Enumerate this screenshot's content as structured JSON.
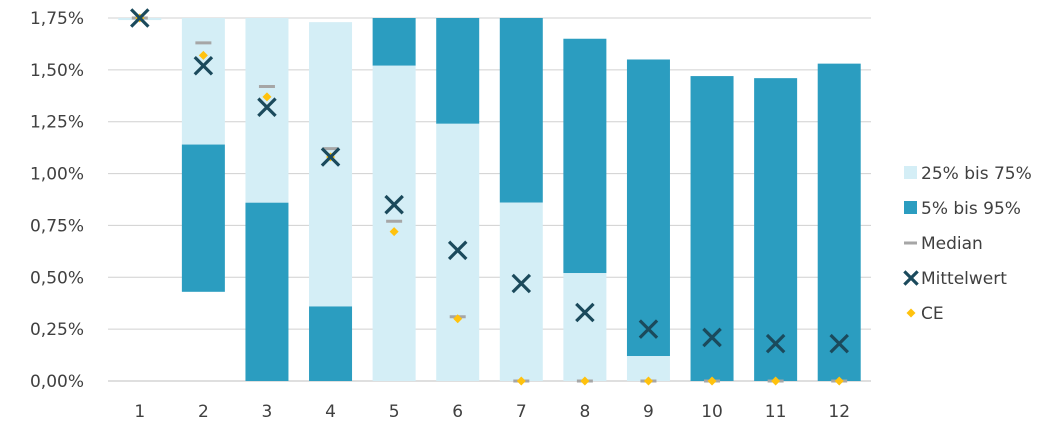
{
  "chart_data": {
    "type": "bar",
    "title": "",
    "xlabel": "",
    "ylabel": "",
    "ylim": [
      0,
      1.75
    ],
    "categories": [
      "1",
      "2",
      "3",
      "4",
      "5",
      "6",
      "7",
      "8",
      "9",
      "10",
      "11",
      "12"
    ],
    "y_ticks": [
      0,
      0.25,
      0.5,
      0.75,
      1.0,
      1.25,
      1.5,
      1.75
    ],
    "y_tick_labels": [
      "0,00%",
      "0,25%",
      "0,50%",
      "0,75%",
      "1,00%",
      "1,25%",
      "1,50%",
      "1,75%"
    ],
    "grid": "horizontal",
    "legend_position": "right",
    "series": [
      {
        "name": "25% bis 75%",
        "color": "#d4eef6",
        "kind": "range-bar",
        "values": [
          [
            1.74,
            1.75
          ],
          [
            1.14,
            1.75
          ],
          [
            0.86,
            1.75
          ],
          [
            0.36,
            1.73
          ],
          [
            0,
            1.52
          ],
          [
            0,
            1.24
          ],
          [
            0,
            0.86
          ],
          [
            0,
            0.52
          ],
          [
            0,
            0.12
          ],
          [
            0,
            0
          ],
          [
            0,
            0
          ],
          [
            0,
            0
          ]
        ]
      },
      {
        "name": "5% bis 95%",
        "color": "#2b9dc0",
        "kind": "range-bar",
        "values": [
          null,
          [
            0.43,
            1.14
          ],
          [
            0,
            0.86
          ],
          [
            0,
            0.36
          ],
          [
            1.52,
            1.75
          ],
          [
            1.24,
            1.75
          ],
          [
            0.86,
            1.75
          ],
          [
            0.52,
            1.65
          ],
          [
            0.12,
            1.55
          ],
          [
            0,
            1.47
          ],
          [
            0,
            1.46
          ],
          [
            0,
            1.53
          ]
        ]
      },
      {
        "name": "Median",
        "color": "#a6a6a6",
        "kind": "dash",
        "values": [
          1.75,
          1.63,
          1.42,
          1.12,
          0.77,
          0.31,
          0,
          0,
          0,
          0,
          0,
          0
        ]
      },
      {
        "name": "Mittelwert",
        "color": "#1b4a5c",
        "kind": "x-marker",
        "values": [
          1.75,
          1.52,
          1.32,
          1.08,
          0.85,
          0.63,
          0.47,
          0.33,
          0.25,
          0.21,
          0.18,
          0.18
        ]
      },
      {
        "name": "CE",
        "color": "#ffc20e",
        "kind": "diamond",
        "values": [
          1.75,
          1.57,
          1.37,
          1.08,
          0.72,
          0.3,
          0,
          0,
          0,
          0,
          0,
          0
        ]
      }
    ]
  }
}
